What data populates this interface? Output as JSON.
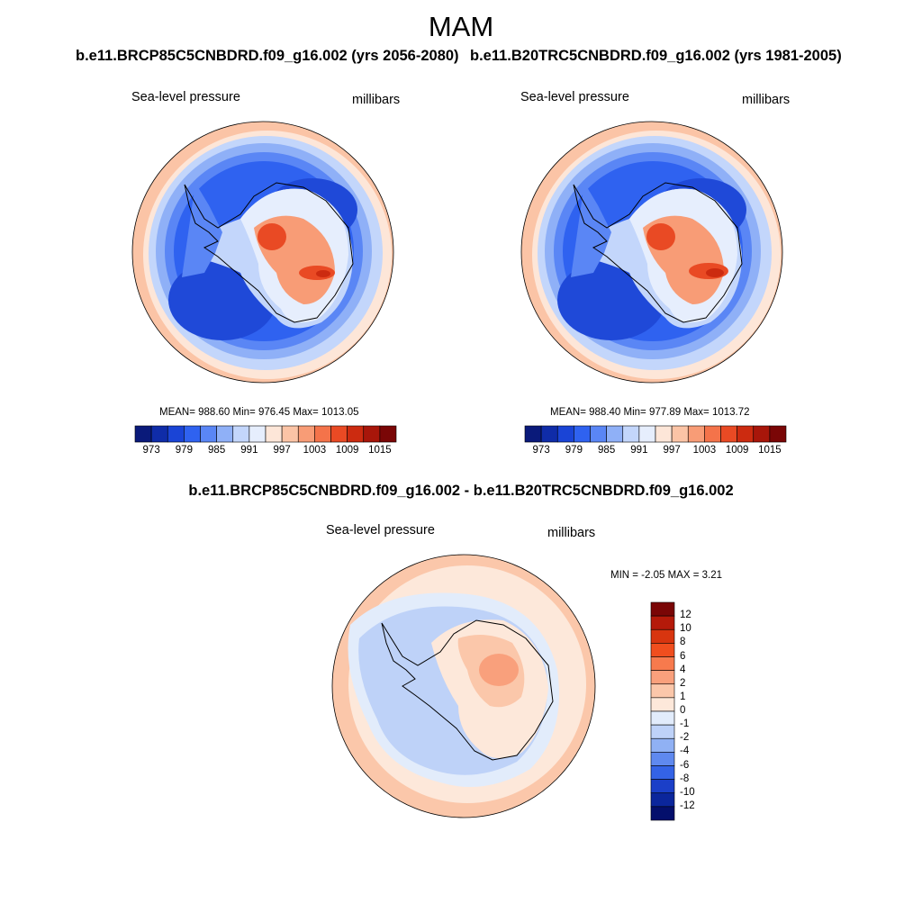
{
  "figure": {
    "title": "MAM",
    "panel_1": {
      "title": "b.e11.BRCP85C5CNBDRD.f09_g16.002 (yrs 2056-2080)",
      "left_label": "Sea-level pressure",
      "right_label": "millibars",
      "stats": "MEAN= 988.60  Min= 976.45  Max= 1013.05"
    },
    "panel_2": {
      "title": "b.e11.B20TRC5CNBDRD.f09_g16.002 (yrs 1981-2005)",
      "left_label": "Sea-level pressure",
      "right_label": "millibars",
      "stats": "MEAN= 988.40  Min= 977.89  Max= 1013.72"
    },
    "panel_3": {
      "title": "b.e11.BRCP85C5CNBDRD.f09_g16.002 - b.e11.B20TRC5CNBDRD.f09_g16.002",
      "left_label": "Sea-level pressure",
      "right_label": "millibars",
      "stats": "MIN =  -2.05 MAX =   3.21"
    },
    "colorbar_abs": {
      "labels": [
        "973",
        "979",
        "985",
        "991",
        "997",
        "1003",
        "1009",
        "1015"
      ],
      "colors": [
        "#0a1a7a",
        "#0f2ca8",
        "#1a44d6",
        "#2f62f0",
        "#5a86f5",
        "#8fb0f7",
        "#c3d6fb",
        "#e6eefd",
        "#fde6d8",
        "#fbc4a6",
        "#f89c76",
        "#f4734a",
        "#e94a24",
        "#cc2b10",
        "#a8160a",
        "#7a0606"
      ]
    },
    "colorbar_diff": {
      "labels": [
        "12",
        "10",
        "8",
        "6",
        "4",
        "2",
        "1",
        "0",
        "-1",
        "-2",
        "-4",
        "-6",
        "-8",
        "-10",
        "-12"
      ],
      "colors": [
        "#7a0606",
        "#b51a0a",
        "#d8350f",
        "#f04e1e",
        "#f77a4d",
        "#f9a07c",
        "#fbc7aa",
        "#fde8da",
        "#e2ecfb",
        "#bed2f8",
        "#90b1f4",
        "#5f89ef",
        "#3463e6",
        "#1b3fc8",
        "#0b269c",
        "#040f6c"
      ]
    },
    "map_colors": {
      "ocean_low": "#1f49d8",
      "ocean_mid": "#2f62f0",
      "ocean_ring": "#5a86f5",
      "ocean_light": "#8fb0f7",
      "ocean_pale": "#c3d6fb",
      "warm_edge": "#fbc4a6",
      "warm_pale": "#fde6d8",
      "land_light": "#e6eefd",
      "land_warm": "#f89c76",
      "land_hot": "#e94a24",
      "land_peak": "#cc2b10",
      "diff_warm": "#fbc7aa",
      "diff_warm2": "#f9a07c",
      "diff_cool": "#bed2f8",
      "diff_pale": "#e2ecfb",
      "diff_bg": "#fde8da"
    }
  }
}
